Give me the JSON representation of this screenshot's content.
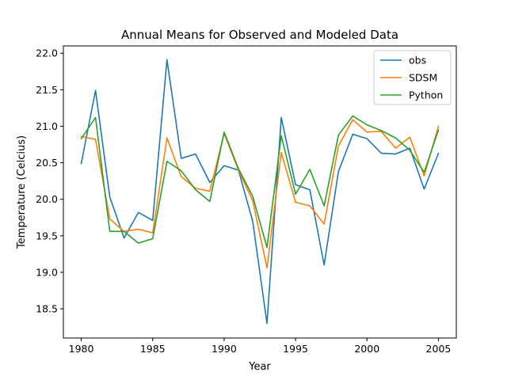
{
  "chart_data": {
    "type": "line",
    "title": "Annual Means for Observed and Modeled Data",
    "xlabel": "Year",
    "ylabel": "Temperature (Celcius)",
    "xlim": [
      1978.75,
      2006.25
    ],
    "ylim": [
      18.1,
      22.1
    ],
    "xticks": [
      1980,
      1985,
      1990,
      1995,
      2000,
      2005
    ],
    "yticks": [
      18.5,
      19.0,
      19.5,
      20.0,
      20.5,
      21.0,
      21.5,
      22.0
    ],
    "ytick_labels": [
      "18.5",
      "19.0",
      "19.5",
      "20.0",
      "20.5",
      "21.0",
      "21.5",
      "22.0"
    ],
    "legend_position": "upper right",
    "grid": false,
    "x": [
      1980,
      1981,
      1982,
      1983,
      1984,
      1985,
      1986,
      1987,
      1988,
      1989,
      1990,
      1991,
      1992,
      1993,
      1994,
      1995,
      1996,
      1997,
      1998,
      1999,
      2000,
      2001,
      2002,
      2003,
      2004,
      2005
    ],
    "series": [
      {
        "name": "obs",
        "color": "#1f77b4",
        "values": [
          20.49,
          21.49,
          20.03,
          19.47,
          19.82,
          19.71,
          21.91,
          20.56,
          20.62,
          20.23,
          20.46,
          20.4,
          19.7,
          18.3,
          21.12,
          20.2,
          20.13,
          19.1,
          20.38,
          20.89,
          20.83,
          20.63,
          20.62,
          20.7,
          20.14,
          20.63
        ]
      },
      {
        "name": "SDSM",
        "color": "#ff7f0e",
        "values": [
          20.86,
          20.82,
          19.73,
          19.56,
          19.59,
          19.54,
          20.84,
          20.31,
          20.15,
          20.11,
          20.9,
          20.4,
          19.98,
          19.06,
          20.64,
          19.96,
          19.91,
          19.66,
          20.73,
          21.09,
          20.92,
          20.93,
          20.7,
          20.85,
          20.32,
          21.0
        ]
      },
      {
        "name": "Python",
        "color": "#2ca02c",
        "values": [
          20.83,
          21.12,
          19.56,
          19.56,
          19.4,
          19.46,
          20.52,
          20.39,
          20.13,
          19.97,
          20.92,
          20.42,
          20.04,
          19.34,
          20.87,
          20.07,
          20.41,
          19.91,
          20.88,
          21.14,
          21.02,
          20.94,
          20.84,
          20.67,
          20.37,
          20.95
        ]
      }
    ]
  }
}
